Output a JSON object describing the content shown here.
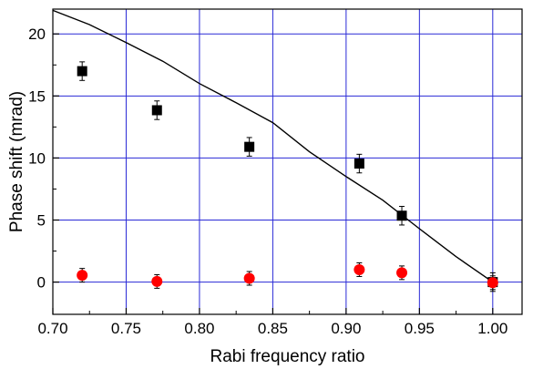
{
  "chart_data": {
    "type": "scatter",
    "title": "",
    "xlabel": "Rabi frequency ratio",
    "ylabel": "Phase shift (mrad)",
    "xlim": [
      0.7,
      1.02
    ],
    "ylim": [
      -2.6,
      22
    ],
    "x_ticks": [
      "0.70",
      "0.75",
      "0.80",
      "0.85",
      "0.90",
      "0.95",
      "1.00"
    ],
    "y_ticks": [
      "0",
      "5",
      "10",
      "15",
      "20"
    ],
    "grid": true,
    "grid_color": "#2a2ad6",
    "series": [
      {
        "marker": "square",
        "color": "#000000",
        "points": [
          {
            "x": 0.72,
            "y": 17.0,
            "err": 0.75
          },
          {
            "x": 0.771,
            "y": 13.85,
            "err": 0.75
          },
          {
            "x": 0.834,
            "y": 10.9,
            "err": 0.75
          },
          {
            "x": 0.909,
            "y": 9.55,
            "err": 0.75
          },
          {
            "x": 0.938,
            "y": 5.35,
            "err": 0.75
          },
          {
            "x": 1.0,
            "y": 0.0,
            "err": 0.75
          }
        ]
      },
      {
        "marker": "circle",
        "color": "#ff0000",
        "points": [
          {
            "x": 0.72,
            "y": 0.55,
            "err": 0.55
          },
          {
            "x": 0.771,
            "y": 0.05,
            "err": 0.55
          },
          {
            "x": 0.834,
            "y": 0.3,
            "err": 0.55
          },
          {
            "x": 0.909,
            "y": 1.0,
            "err": 0.55
          },
          {
            "x": 0.938,
            "y": 0.75,
            "err": 0.55
          },
          {
            "x": 1.0,
            "y": -0.05,
            "err": 0.55
          }
        ]
      },
      {
        "marker": "line",
        "color": "#000000",
        "points": [
          {
            "x": 0.7,
            "y": 21.9
          },
          {
            "x": 0.725,
            "y": 20.75
          },
          {
            "x": 0.75,
            "y": 19.3
          },
          {
            "x": 0.775,
            "y": 17.8
          },
          {
            "x": 0.8,
            "y": 16.0
          },
          {
            "x": 0.825,
            "y": 14.45
          },
          {
            "x": 0.85,
            "y": 12.85
          },
          {
            "x": 0.875,
            "y": 10.5
          },
          {
            "x": 0.9,
            "y": 8.5
          },
          {
            "x": 0.925,
            "y": 6.6
          },
          {
            "x": 0.95,
            "y": 4.3
          },
          {
            "x": 0.975,
            "y": 2.05
          },
          {
            "x": 1.0,
            "y": 0.0
          }
        ]
      }
    ]
  }
}
